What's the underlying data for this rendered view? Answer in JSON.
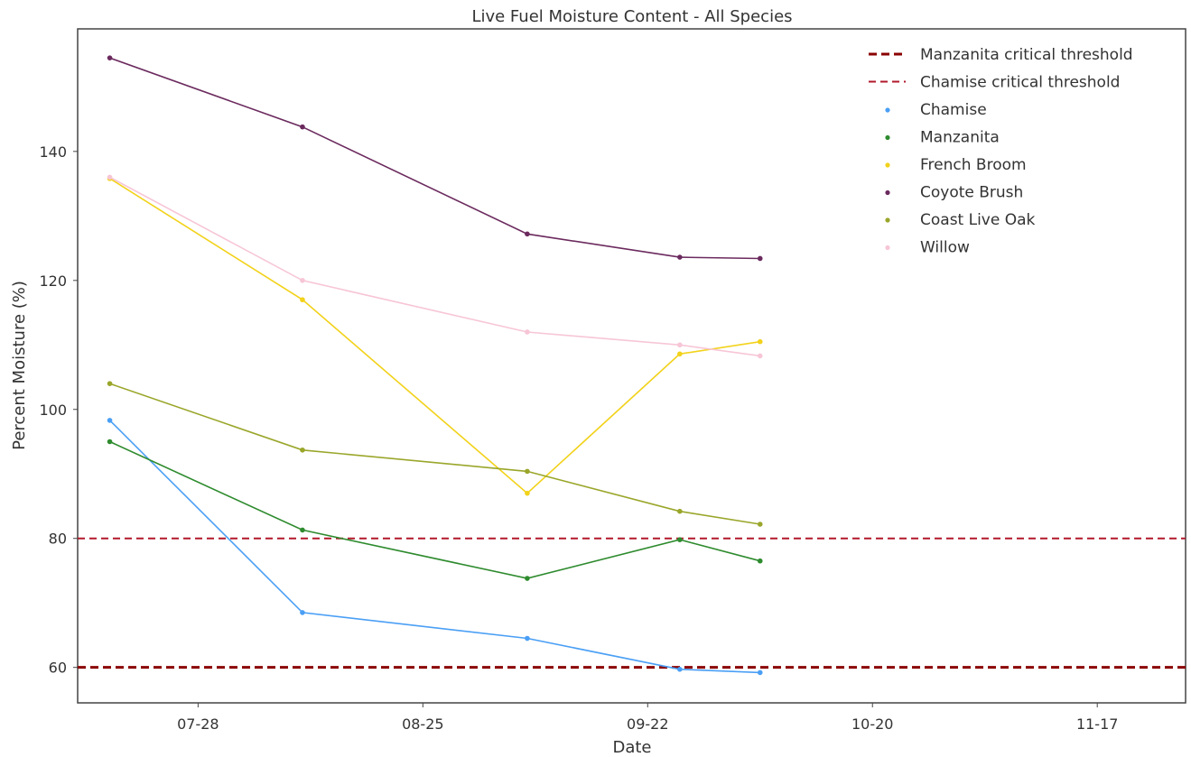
{
  "chart_data": {
    "type": "line",
    "title": "Live Fuel Moisture Content - All Species",
    "xlabel": "Date",
    "ylabel": "Percent Moisture (%)",
    "x_tick_labels": [
      "07-28",
      "08-25",
      "09-22",
      "10-20",
      "11-17"
    ],
    "y_tick_labels": [
      "60",
      "80",
      "100",
      "120",
      "140"
    ],
    "ylim": [
      54.5,
      159
    ],
    "dates": [
      "07-17",
      "08-10",
      "09-07",
      "09-26",
      "10-06"
    ],
    "xlim": [
      "07-13",
      "11-28"
    ],
    "x_tick_dates": [
      "07-28",
      "08-25",
      "09-22",
      "10-20",
      "11-17"
    ],
    "y_ticks": [
      60,
      80,
      100,
      120,
      140
    ],
    "grid": false,
    "legend_position": "top-right",
    "thresholds": [
      {
        "name": "Manzanita critical threshold",
        "value": 60,
        "color": "#8b0000",
        "style": "dashed-thick"
      },
      {
        "name": "Chamise critical threshold",
        "value": 80,
        "color": "#b2182b",
        "style": "dashed"
      }
    ],
    "series": [
      {
        "name": "Chamise",
        "color": "#4a9ff5",
        "values": [
          98.3,
          68.5,
          64.5,
          59.7,
          59.2
        ]
      },
      {
        "name": "Manzanita",
        "color": "#2e8b2e",
        "values": [
          95,
          81.3,
          73.8,
          79.8,
          76.5
        ]
      },
      {
        "name": "French Broom",
        "color": "#f2d21a",
        "values": [
          135.8,
          117,
          87,
          108.6,
          110.5
        ]
      },
      {
        "name": "Coyote Brush",
        "color": "#6b2a5e",
        "values": [
          154.5,
          143.8,
          127.2,
          123.6,
          123.4
        ]
      },
      {
        "name": "Coast Live Oak",
        "color": "#9aa62a",
        "values": [
          104,
          93.7,
          90.4,
          84.2,
          82.2
        ]
      },
      {
        "name": "Willow",
        "color": "#f7c6d6",
        "values": [
          136,
          120,
          112,
          110,
          108.3
        ]
      }
    ]
  }
}
